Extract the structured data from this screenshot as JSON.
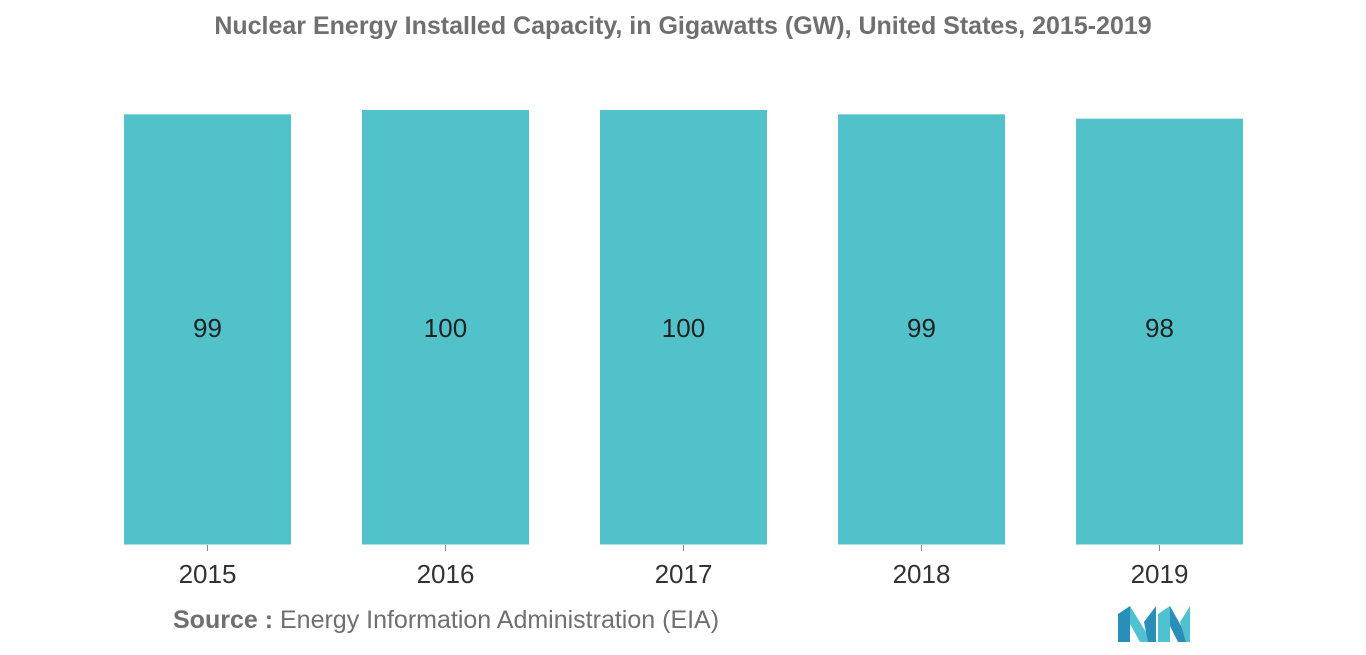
{
  "chart_data": {
    "type": "bar",
    "title": "Nuclear Energy Installed Capacity, in Gigawatts (GW), United States, 2015-2019",
    "categories": [
      "2015",
      "2016",
      "2017",
      "2018",
      "2019"
    ],
    "values": [
      99,
      100,
      100,
      99,
      98
    ],
    "data_labels": [
      "99",
      "100",
      "100",
      "99",
      "98"
    ],
    "xlabel": "",
    "ylabel": "",
    "ylim": [
      0,
      100
    ],
    "grid": false,
    "legend": "none",
    "bar_color": "#52c2ca"
  },
  "source": {
    "label": "Source :",
    "text": "Energy Information Administration (EIA)"
  },
  "logo": {
    "icon": "mordor-intelligence-logo"
  }
}
